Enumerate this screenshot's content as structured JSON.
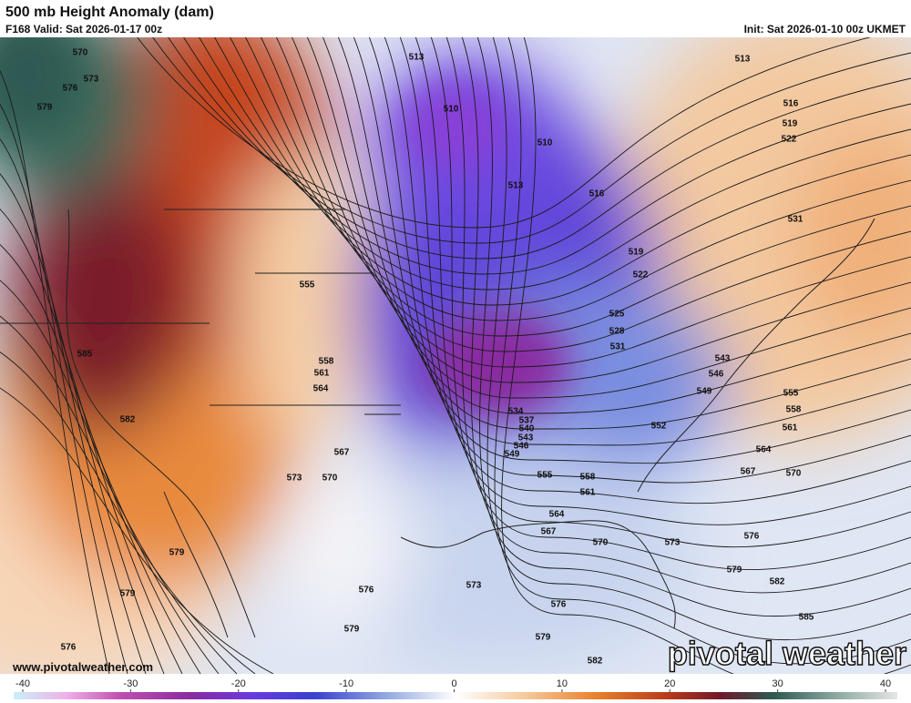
{
  "header": {
    "title": "500 mb Height Anomaly (dam)",
    "valid": "F168 Valid: Sat 2026-01-17 00z",
    "init": "Init: Sat 2026-01-10 00z UKMET"
  },
  "contour_labels": [
    "513",
    "510",
    "510",
    "513",
    "516",
    "519",
    "522",
    "525",
    "528",
    "531",
    "534",
    "537",
    "540",
    "543",
    "546",
    "549",
    "555",
    "558",
    "561",
    "564",
    "567",
    "570",
    "573",
    "576",
    "579",
    "582",
    "585",
    "552",
    "549",
    "546",
    "543",
    "555",
    "558",
    "561",
    "564",
    "567",
    "570",
    "531",
    "522",
    "519",
    "516",
    "513",
    "570",
    "573",
    "576",
    "579",
    "585",
    "582",
    "579",
    "579",
    "576",
    "555",
    "558",
    "561",
    "564",
    "567",
    "570",
    "573",
    "576",
    "579",
    "573",
    "576",
    "579",
    "582"
  ],
  "watermark": {
    "url": "www.pivotalweather.com",
    "brand": "pivotal weather"
  },
  "colorbar": {
    "min": -40,
    "max": 40,
    "ticks": [
      -40,
      -30,
      -20,
      -10,
      0,
      10,
      20,
      30,
      40
    ]
  }
}
